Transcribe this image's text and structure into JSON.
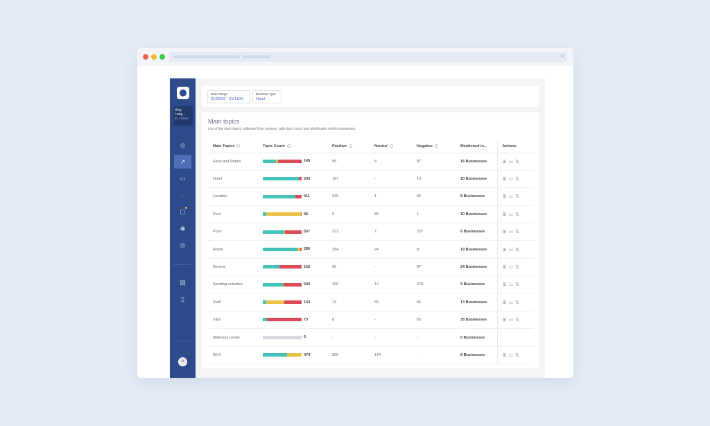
{
  "browser": {
    "close_glyph": "×"
  },
  "sidebar": {
    "account_name": "Very Long...",
    "account_id": "ID: 123456",
    "nav": [
      {
        "name": "compass",
        "glyph": "◎",
        "active": false
      },
      {
        "name": "trend",
        "glyph": "↗",
        "active": true
      },
      {
        "name": "report",
        "glyph": "▭",
        "active": false
      },
      {
        "name": "messages",
        "glyph": "◌",
        "active": false
      },
      {
        "name": "tasks",
        "glyph": "▢",
        "active": false
      },
      {
        "name": "target",
        "glyph": "◉",
        "active": false
      },
      {
        "name": "settings",
        "glyph": "◎",
        "active": false
      },
      {
        "name": "notes",
        "glyph": "▤",
        "active": false
      },
      {
        "name": "mobile",
        "glyph": "▯",
        "active": false
      }
    ]
  },
  "filters": {
    "date_label": "Date Range",
    "date_value": "01/05/20 - 01/11/20",
    "type_label": "Business Type",
    "type_value": "Hotel"
  },
  "panel": {
    "title": "Main topics",
    "subtitle": "List of the main topics collected from reviews, with topic count and distribution whitin businesses."
  },
  "table": {
    "headers": {
      "topic": "Main Topics",
      "count": "Topic Count",
      "positive": "Positive",
      "neutral": "Neutral",
      "negative": "Negative",
      "mentioned": "Mentioned in...",
      "actions": "Actions"
    },
    "rows": [
      {
        "topic": "Food and Drinks",
        "count": "145",
        "positive": "50",
        "neutral": "8",
        "negative": "87",
        "mentioned": "16 Businesses",
        "dist": [
          0.34,
          0.06,
          0.6
        ],
        "actions": true
      },
      {
        "topic": "Hotel",
        "count": "200",
        "positive": "187",
        "neutral": "-",
        "negative": "13",
        "mentioned": "10 Businesses",
        "dist": [
          0.93,
          0.0,
          0.07
        ],
        "actions": true
      },
      {
        "topic": "Location",
        "count": "411",
        "positive": "345",
        "neutral": "1",
        "negative": "65",
        "mentioned": "8 Businesses",
        "dist": [
          0.84,
          0.0,
          0.16
        ],
        "actions": true
      },
      {
        "topic": "Pool",
        "count": "96",
        "positive": "9",
        "neutral": "86",
        "negative": "1",
        "mentioned": "10 Businesses",
        "dist": [
          0.09,
          0.9,
          0.01
        ],
        "actions": true
      },
      {
        "topic": "Price",
        "count": "557",
        "positive": "313",
        "neutral": "7",
        "negative": "237",
        "mentioned": "6 Businesses",
        "dist": [
          0.56,
          0.01,
          0.43
        ],
        "actions": true
      },
      {
        "topic": "Room",
        "count": "286",
        "positive": "254",
        "neutral": "24",
        "negative": "8",
        "mentioned": "19 Businesses",
        "dist": [
          0.89,
          0.08,
          0.03
        ],
        "actions": true
      },
      {
        "topic": "Service",
        "count": "152",
        "positive": "65",
        "neutral": "-",
        "negative": "87",
        "mentioned": "24 Businesses",
        "dist": [
          0.43,
          0.0,
          0.57
        ],
        "actions": true
      },
      {
        "topic": "Sporting activities",
        "count": "590",
        "positive": "300",
        "neutral": "12",
        "negative": "278",
        "mentioned": "9 Businesses",
        "dist": [
          0.51,
          0.02,
          0.47
        ],
        "actions": true
      },
      {
        "topic": "Staff",
        "count": "143",
        "positive": "13",
        "neutral": "65",
        "negative": "65",
        "mentioned": "13 Businesses",
        "dist": [
          0.09,
          0.455,
          0.455
        ],
        "actions": true
      },
      {
        "topic": "Vibe",
        "count": "73",
        "positive": "8",
        "neutral": "-",
        "negative": "65",
        "mentioned": "35 Businesses",
        "dist": [
          0.11,
          0.0,
          0.89
        ],
        "actions": true
      },
      {
        "topic": "Wellness center",
        "count": "0",
        "positive": "-",
        "neutral": "-",
        "negative": "-",
        "mentioned": "0 Businesses",
        "dist": [
          0,
          0,
          0
        ],
        "actions": false
      },
      {
        "topic": "Wi-fi",
        "count": "474",
        "positive": "300",
        "neutral": "174",
        "negative": "-",
        "mentioned": "8 Businesses",
        "dist": [
          0.63,
          0.37,
          0.0
        ],
        "actions": true
      }
    ]
  },
  "colors": {
    "positive": "#45c3b6",
    "neutral": "#e9c146",
    "negative": "#db4a57",
    "empty": "#d7d9de",
    "sidebar": "#2d4a8a"
  },
  "action_icons": [
    "flow-icon",
    "comment-icon",
    "share-icon"
  ]
}
